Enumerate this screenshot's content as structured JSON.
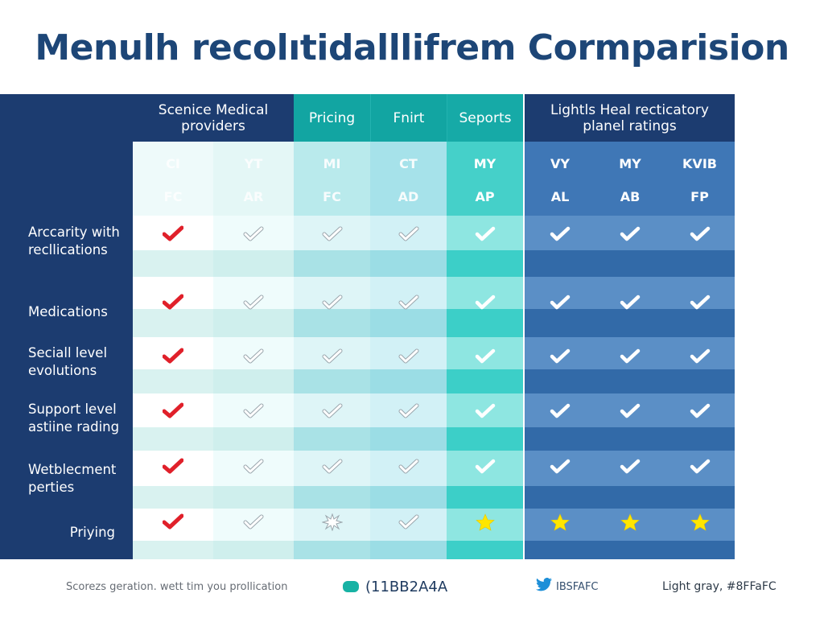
{
  "title": "Menulh recolıtidalllifrem Cormparision",
  "groups": [
    {
      "label": "Scenice Medical providers",
      "subcols": [
        {
          "top": "CI",
          "bottom": "FC"
        },
        {
          "top": "YT",
          "bottom": "AR"
        }
      ]
    },
    {
      "label": "Pricing",
      "subcols": [
        {
          "top": "MI",
          "bottom": "FC"
        }
      ]
    },
    {
      "label": "Fnirt",
      "subcols": [
        {
          "top": "CT",
          "bottom": "AD"
        }
      ]
    },
    {
      "label": "Seports",
      "subcols": [
        {
          "top": "MY",
          "bottom": "AP"
        }
      ]
    },
    {
      "label": "Lightls Heal recticatory planel ratings",
      "subcols": [
        {
          "top": "VY",
          "bottom": "AL"
        },
        {
          "top": "MY",
          "bottom": "AB"
        },
        {
          "top": "KVIB",
          "bottom": "FP"
        }
      ]
    }
  ],
  "rows": [
    {
      "label": "Arccarity with recllications",
      "marks": [
        "check-red",
        "check-outline",
        "check-outline",
        "check-outline",
        "check-white",
        "check-white",
        "check-white",
        "check-white"
      ]
    },
    {
      "label": "Medications",
      "marks": [
        "check-red",
        "check-outline",
        "check-outline",
        "check-outline",
        "check-white",
        "check-white",
        "check-white",
        "check-white"
      ]
    },
    {
      "label": "Seciall level evolutions",
      "marks": [
        "check-red",
        "check-outline",
        "check-outline",
        "check-outline",
        "check-white",
        "check-white",
        "check-white",
        "check-white"
      ]
    },
    {
      "label": "Support level astiine rading",
      "marks": [
        "check-red",
        "check-outline",
        "check-outline",
        "check-outline",
        "check-white",
        "check-white",
        "check-white",
        "check-white"
      ]
    },
    {
      "label": "Wetblecment perties",
      "marks": [
        "check-red",
        "check-outline",
        "check-outline",
        "check-outline",
        "check-white",
        "check-white",
        "check-white",
        "check-white"
      ]
    },
    {
      "label": "Priying",
      "marks": [
        "check-red",
        "check-outline",
        "burst-outline",
        "check-outline",
        "star-yellow",
        "star-yellow",
        "star-yellow",
        "star-yellow"
      ]
    }
  ],
  "footer": {
    "note": "Scorezs geration. wett tim you prollication",
    "color1_label": "(11BB2A4A",
    "color2_label": "IBSFAFC",
    "color3_label": "Light gray, #8FFaFC"
  },
  "colors": {
    "title": "#1d4677",
    "navy": "#1c3c70",
    "teal_header": "#12a5a2",
    "blue_band_light": "#5b8fc6",
    "blue_band_dark": "#326aa8",
    "check_red": "#e0202a",
    "star_yellow": "#ffe600",
    "footer_teal": "#17b2a4",
    "twitter_blue": "#1d8fd8"
  }
}
